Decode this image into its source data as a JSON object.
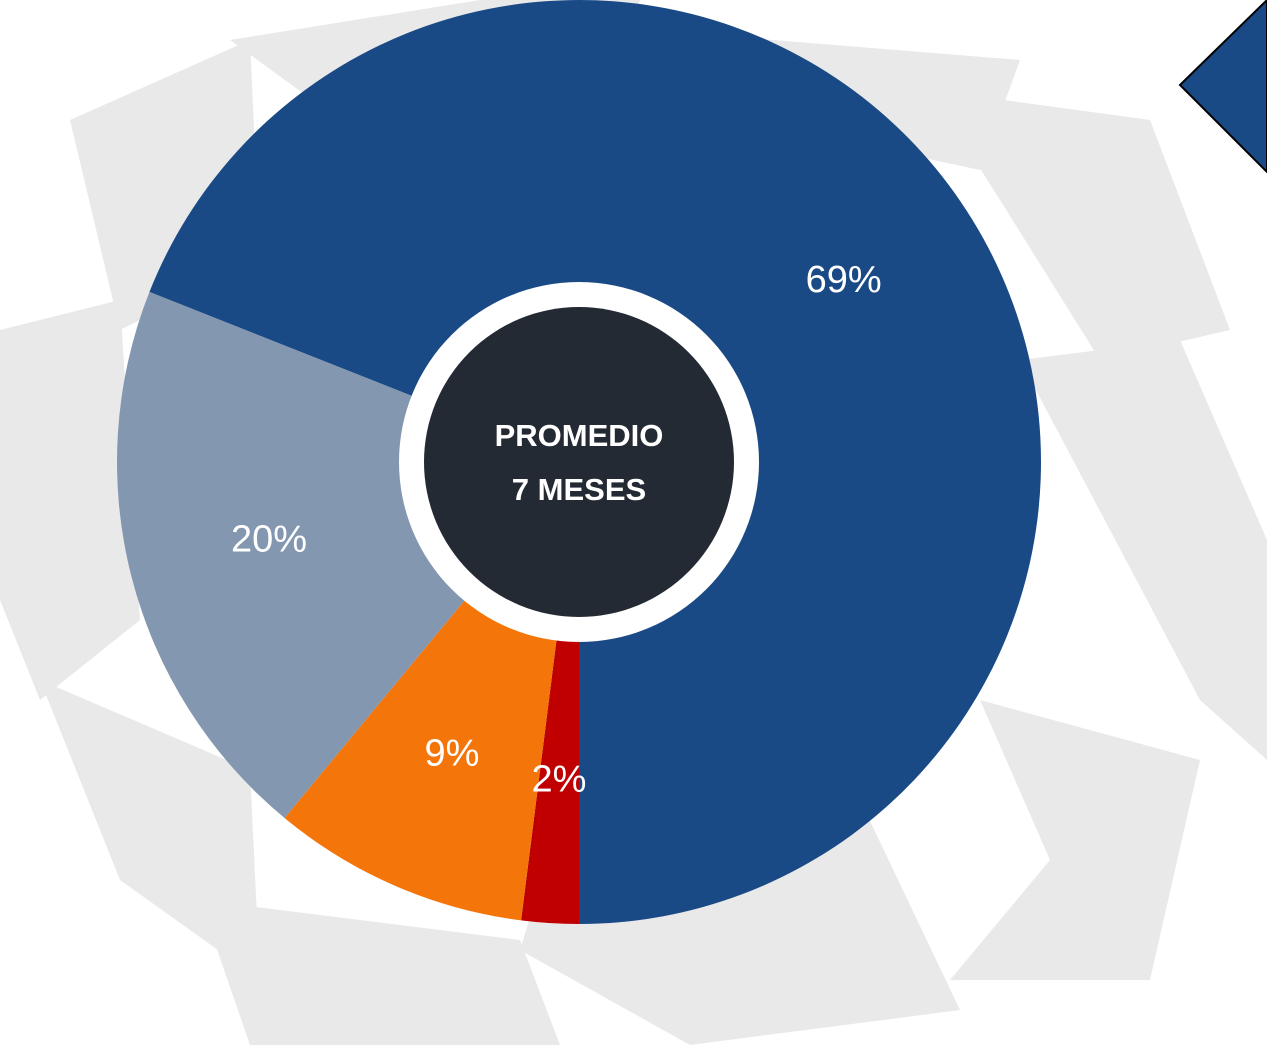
{
  "chart_data": {
    "type": "pie",
    "values": [
      2,
      9,
      20,
      69
    ],
    "value_labels": [
      "2%",
      "9%",
      "20%",
      "69%"
    ],
    "colors": [
      "#c00000",
      "#f4760b",
      "#8497b0",
      "#1a4a85"
    ],
    "center_label": [
      "PROMEDIO",
      "7 MESES"
    ]
  }
}
